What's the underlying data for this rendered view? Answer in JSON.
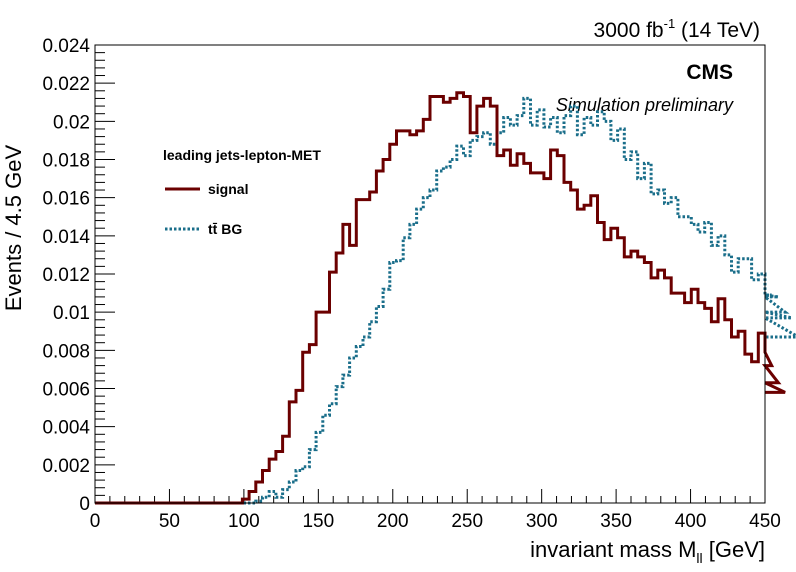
{
  "chart_data": {
    "type": "line",
    "render": "step-histogram",
    "lumi_text": "3000 fb",
    "lumi_exponent": "-1",
    "energy_text": " (14 TeV)",
    "experiment": "CMS",
    "status_text": "Simulation preliminary",
    "xlabel": "invariant mass M",
    "xlabel_subscript": "ll",
    "xlabel_unit": " [GeV]",
    "ylabel": "Events / 4.5 GeV",
    "xlim": [
      0,
      450
    ],
    "ylim": [
      0,
      0.024
    ],
    "x_ticks": [
      0,
      50,
      100,
      150,
      200,
      250,
      300,
      350,
      400,
      450
    ],
    "y_ticks": [
      0,
      0.002,
      0.004,
      0.006,
      0.008,
      0.01,
      0.012,
      0.014,
      0.016,
      0.018,
      0.02,
      0.022,
      0.024
    ],
    "y_tick_labels": [
      "0",
      "0.002",
      "0.004",
      "0.006",
      "0.008",
      "0.01",
      "0.012",
      "0.014",
      "0.016",
      "0.018",
      "0.02",
      "0.022",
      "0.024"
    ],
    "bin_width": 4.5,
    "legend": {
      "title": "leading jets-lepton-MET",
      "entries": [
        {
          "label": "signal",
          "series": 0
        },
        {
          "label": "tt̄ BG",
          "series": 1
        }
      ]
    },
    "series": [
      {
        "name": "signal",
        "color": "#6b0000",
        "style": "solid",
        "values": [
          0,
          0,
          0,
          0,
          0,
          0,
          0,
          0,
          0,
          0,
          0,
          0,
          0,
          0,
          0,
          0,
          0,
          0,
          0,
          0,
          0,
          0,
          0.0002,
          0.0006,
          0.0011,
          0.0017,
          0.0023,
          0.0027,
          0.0035,
          0.0053,
          0.0059,
          0.0079,
          0.0083,
          0.01,
          0.01,
          0.0121,
          0.0131,
          0.0146,
          0.0135,
          0.0159,
          0.0159,
          0.0163,
          0.0174,
          0.018,
          0.0188,
          0.0195,
          0.0195,
          0.0193,
          0.0195,
          0.0201,
          0.0213,
          0.0213,
          0.021,
          0.0212,
          0.0215,
          0.0213,
          0.0194,
          0.0208,
          0.0212,
          0.0208,
          0.0182,
          0.0185,
          0.0177,
          0.0183,
          0.0178,
          0.0173,
          0.0173,
          0.017,
          0.0185,
          0.0182,
          0.0168,
          0.0164,
          0.0154,
          0.0156,
          0.0161,
          0.0147,
          0.0138,
          0.0144,
          0.0139,
          0.0129,
          0.0132,
          0.0129,
          0.0126,
          0.0118,
          0.0122,
          0.0118,
          0.011,
          0.011,
          0.0105,
          0.0112,
          0.0105,
          0.0102,
          0.0095,
          0.0107,
          0.0096,
          0.0087,
          0.009,
          0.0078,
          0.0074,
          0.0089,
          0.0079,
          0.0072,
          0.0063,
          0.0058
        ]
      },
      {
        "name": "tt̄ BG",
        "color": "#1a6e8a",
        "style": "dotted",
        "values": [
          0,
          0,
          0,
          0,
          0,
          0,
          0,
          0,
          0,
          0,
          0,
          0,
          0,
          0,
          0,
          0,
          0,
          0,
          0,
          0,
          0,
          0,
          0,
          0,
          0.0001,
          0.0003,
          0.0006,
          0.0003,
          0.0007,
          0.0011,
          0.0017,
          0.0019,
          0.0028,
          0.0037,
          0.0046,
          0.0052,
          0.0061,
          0.0067,
          0.0076,
          0.0082,
          0.0087,
          0.0095,
          0.0103,
          0.0112,
          0.0126,
          0.0127,
          0.0139,
          0.0146,
          0.0154,
          0.016,
          0.0164,
          0.0174,
          0.0176,
          0.018,
          0.0187,
          0.0182,
          0.019,
          0.0192,
          0.0194,
          0.0188,
          0.0194,
          0.0202,
          0.0198,
          0.0203,
          0.0212,
          0.0198,
          0.0206,
          0.0197,
          0.0202,
          0.0194,
          0.0203,
          0.0208,
          0.0193,
          0.0202,
          0.0198,
          0.0205,
          0.02,
          0.019,
          0.0196,
          0.018,
          0.0184,
          0.017,
          0.0178,
          0.0162,
          0.0164,
          0.0157,
          0.016,
          0.015,
          0.015,
          0.0146,
          0.0142,
          0.0147,
          0.0135,
          0.014,
          0.013,
          0.0121,
          0.0128,
          0.0128,
          0.0117,
          0.012,
          0.0109,
          0.0109,
          0.0108,
          0.01,
          0.0097,
          0.0087
        ]
      }
    ]
  }
}
